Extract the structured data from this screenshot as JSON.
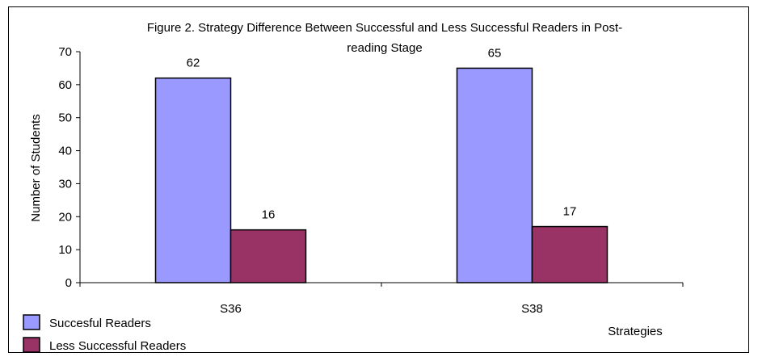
{
  "chart_data": {
    "type": "bar",
    "title": "Figure 2. Strategy Difference Between Successful and Less Successful Readers in Post-reading Stage",
    "title_lines": [
      "Figure 2. Strategy Difference Between Successful and Less Successful Readers in Post-",
      "reading Stage"
    ],
    "xlabel": "Strategies",
    "ylabel": "Number of Students",
    "categories": [
      "S36",
      "S38"
    ],
    "series": [
      {
        "name": "Succesful Readers",
        "values": [
          62,
          65
        ],
        "color": "#9999ff"
      },
      {
        "name": "Less Successful Readers",
        "values": [
          16,
          17
        ],
        "color": "#993366"
      }
    ],
    "ylim": [
      0,
      70
    ],
    "yticks": [
      0,
      10,
      20,
      30,
      40,
      50,
      60,
      70
    ],
    "grid": false,
    "legend_position": "bottom-left",
    "data_labels": true
  }
}
